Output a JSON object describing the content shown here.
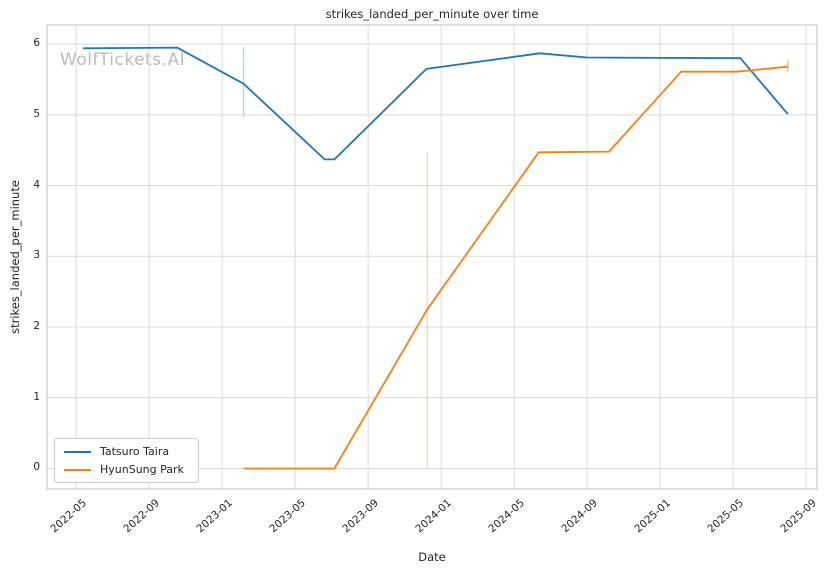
{
  "watermark": "WolfTickets.AI",
  "colors": {
    "series_blue": "#1f77b4",
    "series_orange": "#ff7f0e",
    "grid": "#dcdcdc",
    "spine": "#cccccc",
    "text": "#262626",
    "watermark": "#bcbcbc",
    "legend_border": "#cccccc",
    "background": "#ffffff"
  },
  "chart_data": {
    "type": "line",
    "title": "strikes_landed_per_minute over time",
    "xlabel": "Date",
    "ylabel": "strikes_landed_per_minute",
    "grid": true,
    "legend_position": "lower left",
    "x_unit": "months since 2022-01 (t = (year-2022)*12 + month-1)",
    "xlim": [
      2.4,
      44.6
    ],
    "ylim": [
      -0.29,
      6.27
    ],
    "x_ticks": [
      {
        "t": 4,
        "label": "2022-05"
      },
      {
        "t": 8,
        "label": "2022-09"
      },
      {
        "t": 12,
        "label": "2023-01"
      },
      {
        "t": 16,
        "label": "2023-05"
      },
      {
        "t": 20,
        "label": "2023-09"
      },
      {
        "t": 24,
        "label": "2024-01"
      },
      {
        "t": 28,
        "label": "2024-05"
      },
      {
        "t": 32,
        "label": "2024-09"
      },
      {
        "t": 36,
        "label": "2025-01"
      },
      {
        "t": 40,
        "label": "2025-05"
      },
      {
        "t": 44,
        "label": "2025-09"
      }
    ],
    "y_ticks": [
      {
        "v": 0,
        "label": "0"
      },
      {
        "v": 1,
        "label": "1"
      },
      {
        "v": 2,
        "label": "2"
      },
      {
        "v": 3,
        "label": "3"
      },
      {
        "v": 4,
        "label": "4"
      },
      {
        "v": 5,
        "label": "5"
      },
      {
        "v": 6,
        "label": "6"
      }
    ],
    "series": [
      {
        "name": "Tatsuro Taira",
        "color": "#1f77b4",
        "points": [
          {
            "date": "2022-05-12",
            "t": 4.37,
            "value": 5.94
          },
          {
            "date": "2022-10-17",
            "t": 9.53,
            "value": 5.95
          },
          {
            "date": "2023-02-06",
            "t": 13.17,
            "value": 5.44
          },
          {
            "date": "2023-06-19",
            "t": 17.62,
            "value": 4.37
          },
          {
            "date": "2023-07-05",
            "t": 18.15,
            "value": 4.37
          },
          {
            "date": "2023-12-07",
            "t": 23.2,
            "value": 5.65
          },
          {
            "date": "2024-06-13",
            "t": 29.4,
            "value": 5.87
          },
          {
            "date": "2024-09-01",
            "t": 32.0,
            "value": 5.81
          },
          {
            "date": "2025-05-13",
            "t": 40.4,
            "value": 5.8
          },
          {
            "date": "2025-08-01",
            "t": 43.0,
            "value": 5.01
          }
        ]
      },
      {
        "name": "HyunSung Park",
        "color": "#ff7f0e",
        "points": [
          {
            "date": "2023-02-06",
            "t": 13.17,
            "value": 0.0
          },
          {
            "date": "2023-07-05",
            "t": 18.15,
            "value": 0.0
          },
          {
            "date": "2023-12-08",
            "t": 23.24,
            "value": 2.25
          },
          {
            "date": "2024-06-11",
            "t": 29.35,
            "value": 4.47
          },
          {
            "date": "2024-10-07",
            "t": 33.2,
            "value": 4.48
          },
          {
            "date": "2025-02-05",
            "t": 37.16,
            "value": 5.61
          },
          {
            "date": "2025-05-06",
            "t": 40.17,
            "value": 5.61
          },
          {
            "date": "2025-08-01",
            "t": 43.0,
            "value": 5.68
          }
        ]
      }
    ],
    "error_bars": [
      {
        "series": "Tatsuro Taira",
        "date": "2023-02-06",
        "t": 13.17,
        "low": 4.96,
        "high": 5.96,
        "color": "#1f77b4",
        "opacity": 0.3
      },
      {
        "series": "HyunSung Park",
        "date": "2023-12-08",
        "t": 23.24,
        "low": 0.0,
        "high": 4.47,
        "color": "#ff7f0e",
        "opacity": 0.3
      },
      {
        "series": "HyunSung Park",
        "date": "2025-08-01",
        "t": 43.0,
        "low": 5.61,
        "high": 5.77,
        "color": "#ff7f0e",
        "opacity": 0.6
      }
    ]
  }
}
